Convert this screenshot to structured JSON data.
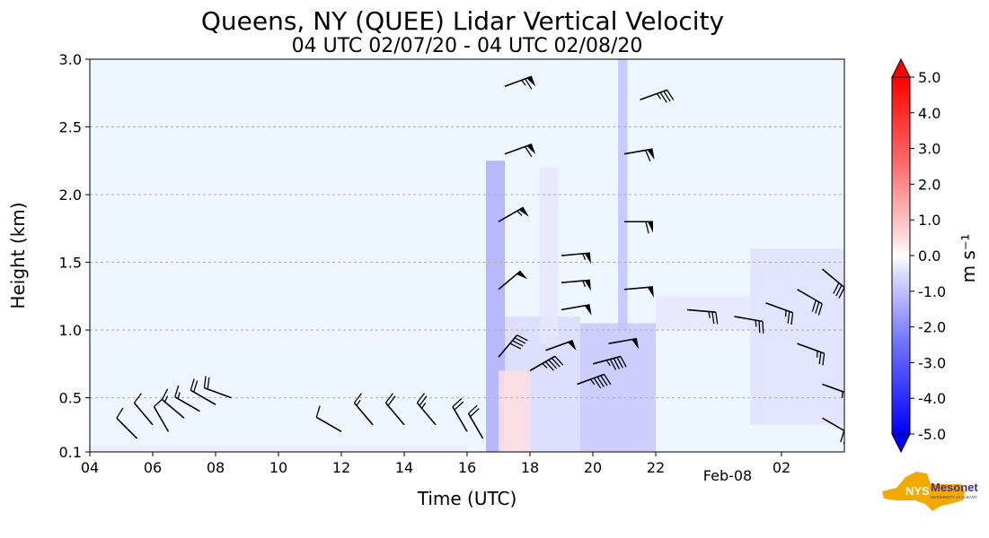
{
  "chart_data": {
    "type": "heatmap",
    "title": "Queens, NY (QUEE) Lidar Vertical Velocity",
    "subtitle": "04 UTC 02/07/20 - 04 UTC 02/08/20",
    "xlabel": "Time (UTC)",
    "ylabel": "Height (km)",
    "x_unit": "hours since 04 UTC 02/07/20",
    "xlim": [
      0,
      24
    ],
    "ylim": [
      0.1,
      3.0
    ],
    "x_ticks": [
      {
        "value": 0,
        "label": "04"
      },
      {
        "value": 2,
        "label": "06"
      },
      {
        "value": 4,
        "label": "08"
      },
      {
        "value": 6,
        "label": "10"
      },
      {
        "value": 8,
        "label": "12"
      },
      {
        "value": 10,
        "label": "14"
      },
      {
        "value": 12,
        "label": "16"
      },
      {
        "value": 14,
        "label": "18"
      },
      {
        "value": 16,
        "label": "20"
      },
      {
        "value": 18,
        "label": "22"
      },
      {
        "value": 22,
        "label": "02"
      }
    ],
    "date_label": {
      "value": 20,
      "label": "Feb-08"
    },
    "y_ticks": [
      {
        "value": 0.1,
        "label": "0.1"
      },
      {
        "value": 0.5,
        "label": "0.5"
      },
      {
        "value": 1.0,
        "label": "1.0"
      },
      {
        "value": 1.5,
        "label": "1.5"
      },
      {
        "value": 2.0,
        "label": "2.0"
      },
      {
        "value": 2.5,
        "label": "2.5"
      },
      {
        "value": 3.0,
        "label": "3.0"
      }
    ],
    "grid": "horizontal dashed",
    "colorbar": {
      "label": "m s⁻¹",
      "range": [
        -5.0,
        5.0
      ],
      "extend": "both",
      "ticks": [
        {
          "value": 5.0,
          "label": "5.0"
        },
        {
          "value": 4.0,
          "label": "4.0"
        },
        {
          "value": 3.0,
          "label": "3.0"
        },
        {
          "value": 2.0,
          "label": "2.0"
        },
        {
          "value": 1.0,
          "label": "1.0"
        },
        {
          "value": 0.0,
          "label": "0.0"
        },
        {
          "value": -1.0,
          "label": "-1.0"
        },
        {
          "value": -2.0,
          "label": "-2.0"
        },
        {
          "value": -3.0,
          "label": "-3.0"
        },
        {
          "value": -4.0,
          "label": "-4.0"
        },
        {
          "value": -5.0,
          "label": "-5.0"
        }
      ]
    },
    "velocity_regions": [
      {
        "t0": 0.0,
        "t1": 12.0,
        "z0": 0.1,
        "z1": 0.15,
        "w": -0.4
      },
      {
        "t0": 12.6,
        "t1": 13.2,
        "z0": 0.1,
        "z1": 2.25,
        "w": -1.6
      },
      {
        "t0": 13.2,
        "t1": 15.6,
        "z0": 0.1,
        "z1": 1.1,
        "w": -0.7
      },
      {
        "t0": 14.3,
        "t1": 14.9,
        "z0": 0.9,
        "z1": 2.2,
        "w": -0.5
      },
      {
        "t0": 13.0,
        "t1": 14.0,
        "z0": 0.1,
        "z1": 0.7,
        "w": 0.6
      },
      {
        "t0": 15.6,
        "t1": 18.0,
        "z0": 0.1,
        "z1": 1.05,
        "w": -1.1
      },
      {
        "t0": 16.8,
        "t1": 17.1,
        "z0": 1.0,
        "z1": 3.0,
        "w": -1.2
      },
      {
        "t0": 18.0,
        "t1": 21.0,
        "z0": 1.0,
        "z1": 1.25,
        "w": -0.5
      },
      {
        "t0": 21.0,
        "t1": 24.0,
        "z0": 0.3,
        "z1": 1.6,
        "w": -0.6
      }
    ],
    "wind_barbs": [
      {
        "t": 1.5,
        "z": 0.2,
        "dir": 315,
        "spd": 10
      },
      {
        "t": 2.0,
        "z": 0.3,
        "dir": 320,
        "spd": 10
      },
      {
        "t": 2.5,
        "z": 0.25,
        "dir": 330,
        "spd": 10
      },
      {
        "t": 3.0,
        "z": 0.35,
        "dir": 310,
        "spd": 15
      },
      {
        "t": 3.5,
        "z": 0.4,
        "dir": 300,
        "spd": 15
      },
      {
        "t": 4.0,
        "z": 0.45,
        "dir": 300,
        "spd": 20
      },
      {
        "t": 4.5,
        "z": 0.5,
        "dir": 290,
        "spd": 20
      },
      {
        "t": 8.0,
        "z": 0.25,
        "dir": 300,
        "spd": 10
      },
      {
        "t": 9.0,
        "z": 0.3,
        "dir": 320,
        "spd": 15
      },
      {
        "t": 10.0,
        "z": 0.3,
        "dir": 320,
        "spd": 20
      },
      {
        "t": 11.0,
        "z": 0.3,
        "dir": 320,
        "spd": 25
      },
      {
        "t": 12.0,
        "z": 0.25,
        "dir": 330,
        "spd": 20
      },
      {
        "t": 12.5,
        "z": 0.2,
        "dir": 330,
        "spd": 20
      },
      {
        "t": 13.0,
        "z": 0.8,
        "dir": 40,
        "spd": 40
      },
      {
        "t": 13.0,
        "z": 1.3,
        "dir": 50,
        "spd": 50
      },
      {
        "t": 13.0,
        "z": 1.8,
        "dir": 60,
        "spd": 55
      },
      {
        "t": 13.2,
        "z": 2.3,
        "dir": 70,
        "spd": 60
      },
      {
        "t": 13.2,
        "z": 2.8,
        "dir": 70,
        "spd": 65
      },
      {
        "t": 14.0,
        "z": 0.7,
        "dir": 60,
        "spd": 45
      },
      {
        "t": 14.5,
        "z": 0.85,
        "dir": 70,
        "spd": 50
      },
      {
        "t": 15.0,
        "z": 1.15,
        "dir": 80,
        "spd": 50
      },
      {
        "t": 15.0,
        "z": 1.35,
        "dir": 85,
        "spd": 55
      },
      {
        "t": 15.0,
        "z": 1.55,
        "dir": 85,
        "spd": 55
      },
      {
        "t": 15.5,
        "z": 0.6,
        "dir": 70,
        "spd": 45
      },
      {
        "t": 16.0,
        "z": 0.75,
        "dir": 75,
        "spd": 45
      },
      {
        "t": 16.5,
        "z": 0.9,
        "dir": 80,
        "spd": 50
      },
      {
        "t": 17.0,
        "z": 1.3,
        "dir": 85,
        "spd": 50
      },
      {
        "t": 17.0,
        "z": 1.8,
        "dir": 90,
        "spd": 60
      },
      {
        "t": 17.0,
        "z": 2.3,
        "dir": 80,
        "spd": 60
      },
      {
        "t": 17.5,
        "z": 2.7,
        "dir": 70,
        "spd": 35
      },
      {
        "t": 19.0,
        "z": 1.15,
        "dir": 95,
        "spd": 25
      },
      {
        "t": 20.5,
        "z": 1.1,
        "dir": 100,
        "spd": 25
      },
      {
        "t": 21.5,
        "z": 1.2,
        "dir": 110,
        "spd": 25
      },
      {
        "t": 22.5,
        "z": 1.3,
        "dir": 120,
        "spd": 30
      },
      {
        "t": 23.3,
        "z": 1.45,
        "dir": 130,
        "spd": 30
      },
      {
        "t": 22.5,
        "z": 0.9,
        "dir": 110,
        "spd": 25
      },
      {
        "t": 23.3,
        "z": 0.6,
        "dir": 110,
        "spd": 25
      },
      {
        "t": 23.3,
        "z": 0.35,
        "dir": 120,
        "spd": 20
      }
    ]
  },
  "logo": {
    "brand": "NYS",
    "name": "Mesonet",
    "tagline": "UNIVERSITY AT ALBANY"
  }
}
